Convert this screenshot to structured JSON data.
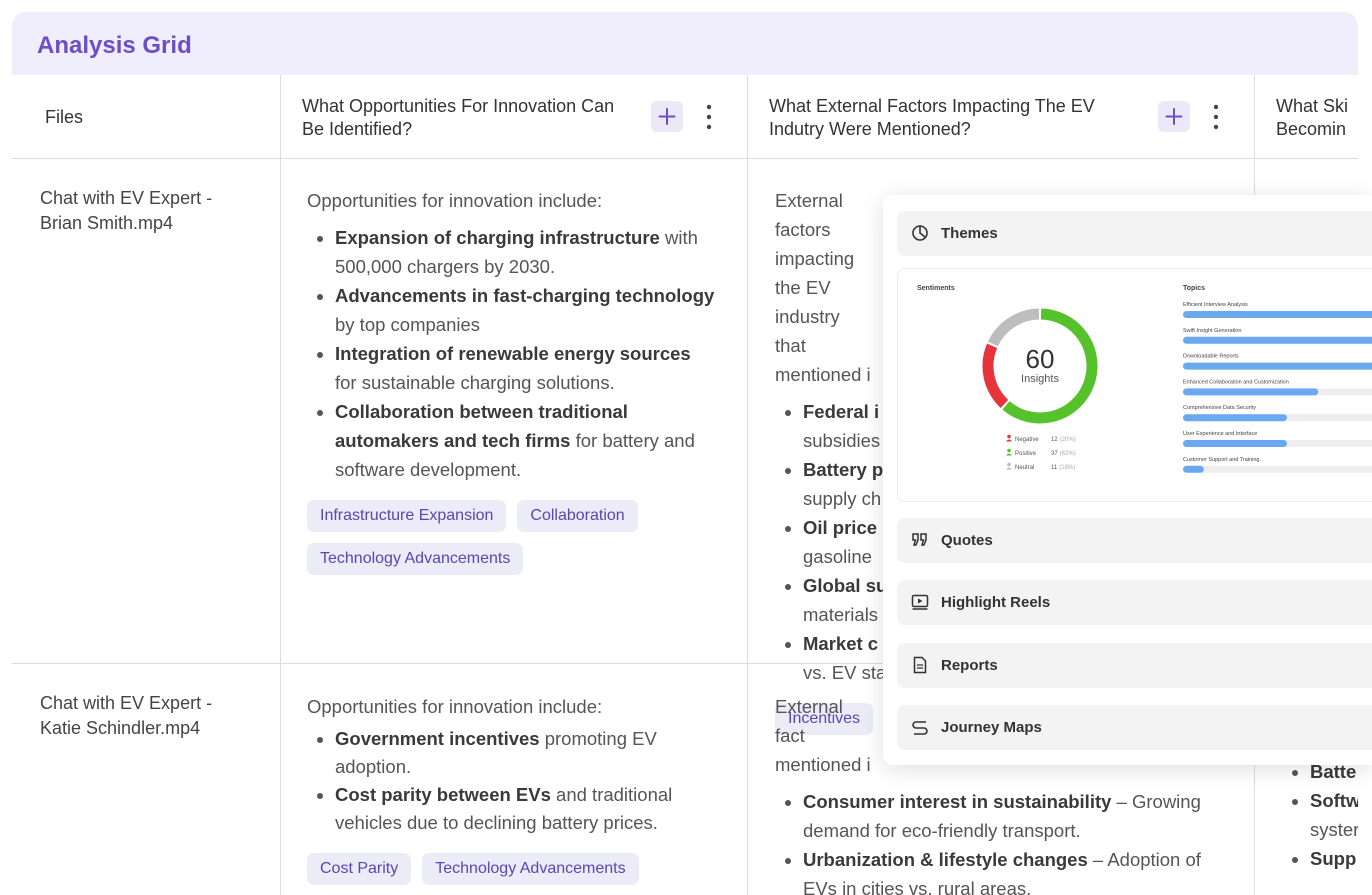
{
  "header": {
    "title": "Analysis Grid"
  },
  "table": {
    "columns": [
      "Files",
      "What Opportunities For Innovation Can Be Identified?",
      "What External Factors Impacting The EV Indutry Were Mentioned?",
      "What Ski\nBecomin"
    ],
    "rows": [
      {
        "file": "Chat with EV Expert - Brian Smith.mp4",
        "cells": [
          {
            "intro": "Opportunities for innovation include:",
            "bullets": [
              {
                "bold": "Expansion of charging infrastructure",
                "text": " with 500,000 chargers by 2030."
              },
              {
                "bold": "Advancements in fast-charging technology",
                "text": " by top companies"
              },
              {
                "bold": "Integration of renewable energy sources",
                "text": " for sustainable charging solutions."
              },
              {
                "bold": "Collaboration between traditional automakers and tech firms",
                "text": " for battery and software development."
              }
            ],
            "tags": [
              "Infrastructure Expansion",
              "Collaboration",
              "Technology Advancements"
            ]
          },
          {
            "intro": "External factors impacting the EV industry that mentioned i",
            "bullets": [
              {
                "bold": "Federal i",
                "text": "subsidies"
              },
              {
                "bold": "Battery p",
                "text": "supply ch"
              },
              {
                "bold": "Oil price",
                "text": "gasoline"
              },
              {
                "bold": "Global su",
                "text": "materials"
              },
              {
                "bold": "Market c",
                "text": "vs. EV sta"
              }
            ],
            "tags": [
              "Incentives"
            ]
          }
        ]
      },
      {
        "file": "Chat with EV Expert - Katie Schindler.mp4",
        "cells": [
          {
            "intro": "Opportunities for innovation include:",
            "bullets": [
              {
                "bold": "Government incentives",
                "text": " promoting EV adoption."
              },
              {
                "bold": "Cost parity between EVs",
                "text": " and traditional vehicles due to declining battery prices."
              }
            ],
            "tags": [
              "Cost Parity",
              "Technology Advancements"
            ]
          },
          {
            "intro": "External fact mentioned i",
            "bullets": [
              {
                "bold": "Consumer interest in sustainability",
                "text": " – Growing demand for eco-friendly transport."
              },
              {
                "bold": "Urbanization & lifestyle changes",
                "text": " – Adoption of EVs in cities vs. rural areas."
              }
            ]
          },
          {
            "bullets": [
              {
                "bold": "Batte"
              },
              {
                "bold": "Softw",
                "text": "syster"
              },
              {
                "bold": "Supp"
              }
            ]
          }
        ]
      }
    ]
  },
  "panel": {
    "sections": [
      "Themes",
      "Quotes",
      "Highlight Reels",
      "Reports",
      "Journey Maps"
    ],
    "sentiments_title": "Sentiments",
    "total": 60,
    "total_label": "Insights",
    "sentiments": [
      {
        "name": "Negative",
        "value": 12,
        "share_label": "(20%)",
        "color": "#e8323c"
      },
      {
        "name": "Positive",
        "value": 37,
        "share_label": "(62%)",
        "color": "#56c22b"
      },
      {
        "name": "Neutral",
        "value": 11,
        "share_label": "(18%)",
        "color": "#bdbdbd"
      }
    ],
    "topics_title": "Topics",
    "topics": [
      {
        "name": "Efficient Interview Analysis",
        "value": 90
      },
      {
        "name": "Swift Insight Generation",
        "value": 85
      },
      {
        "name": "Downloadable Reports",
        "value": 80
      },
      {
        "name": "Enhanced Collaboration and Customization",
        "value": 52
      },
      {
        "name": "Comprehensive Data Security",
        "value": 40
      },
      {
        "name": "User Experience and Interface",
        "value": 40
      },
      {
        "name": "Customer Support and Training",
        "value": 8
      }
    ],
    "topic_color": "#6aa9f0"
  }
}
